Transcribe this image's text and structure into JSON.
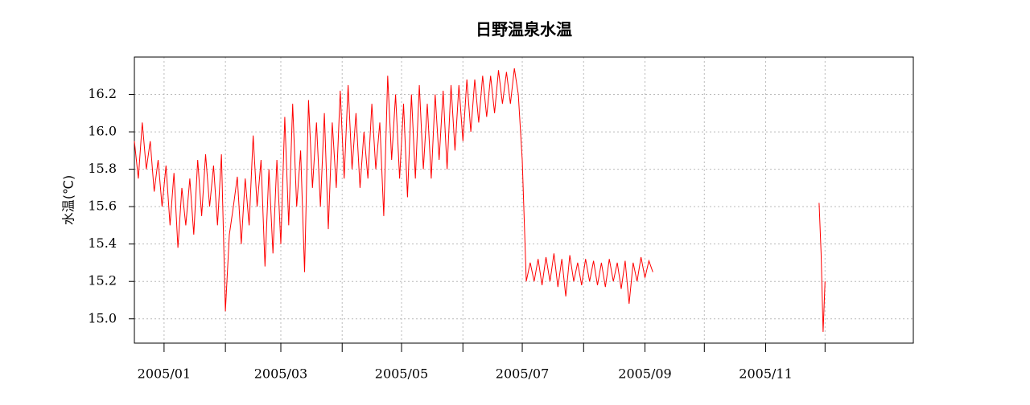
{
  "chart_data": {
    "type": "line",
    "title": "日野温泉水温",
    "y_label": "水温(℃)",
    "x": [
      -15,
      -13,
      -11,
      -9,
      -7,
      -5,
      -3,
      -1,
      1,
      3,
      5,
      7,
      9,
      11,
      13,
      15,
      17,
      19,
      21,
      23,
      25,
      27,
      29,
      31,
      33,
      35,
      37,
      39,
      41,
      43,
      45,
      47,
      49,
      51,
      53,
      55,
      57,
      59,
      61,
      63,
      65,
      67,
      69,
      71,
      73,
      75,
      77,
      79,
      81,
      83,
      85,
      87,
      89,
      91,
      93,
      95,
      97,
      99,
      101,
      103,
      105,
      107,
      109,
      111,
      113,
      115,
      117,
      119,
      121,
      123,
      125,
      127,
      129,
      131,
      133,
      135,
      137,
      139,
      141,
      143,
      145,
      147,
      149,
      151,
      153,
      155,
      157,
      159,
      161,
      163,
      165,
      167,
      169,
      171,
      173,
      175,
      177,
      179,
      181,
      183,
      185,
      187,
      189,
      191,
      193,
      195,
      197,
      199,
      201,
      203,
      205,
      207,
      209,
      211,
      213,
      215,
      217,
      219,
      221,
      223,
      225,
      227,
      229,
      231,
      233,
      235,
      237,
      239,
      241,
      243,
      245,
      247,
      249,
      331,
      332,
      333,
      334
    ],
    "series": [
      {
        "name": "水温",
        "color": "#ff0000",
        "values": [
          15.95,
          15.75,
          16.05,
          15.8,
          15.95,
          15.68,
          15.85,
          15.6,
          15.82,
          15.5,
          15.78,
          15.38,
          15.7,
          15.5,
          15.75,
          15.45,
          15.85,
          15.55,
          15.88,
          15.6,
          15.82,
          15.5,
          15.88,
          15.04,
          15.45,
          15.6,
          15.76,
          15.4,
          15.75,
          15.5,
          15.98,
          15.6,
          15.85,
          15.28,
          15.8,
          15.35,
          15.85,
          15.4,
          16.08,
          15.5,
          16.15,
          15.6,
          15.9,
          15.25,
          16.17,
          15.7,
          16.05,
          15.6,
          16.1,
          15.48,
          16.05,
          15.7,
          16.22,
          15.75,
          16.25,
          15.8,
          16.1,
          15.7,
          16.0,
          15.75,
          16.15,
          15.8,
          16.05,
          15.55,
          16.3,
          15.85,
          16.2,
          15.75,
          16.15,
          15.65,
          16.2,
          15.75,
          16.25,
          15.8,
          16.15,
          15.75,
          16.2,
          15.85,
          16.22,
          15.8,
          16.25,
          15.9,
          16.25,
          15.95,
          16.28,
          16.0,
          16.28,
          16.05,
          16.3,
          16.08,
          16.3,
          16.1,
          16.33,
          16.15,
          16.32,
          16.15,
          16.34,
          16.2,
          15.85,
          15.2,
          15.3,
          15.2,
          15.32,
          15.18,
          15.33,
          15.2,
          15.35,
          15.17,
          15.32,
          15.12,
          15.34,
          15.2,
          15.3,
          15.18,
          15.32,
          15.2,
          15.31,
          15.18,
          15.3,
          15.17,
          15.32,
          15.2,
          15.3,
          15.16,
          15.31,
          15.08,
          15.3,
          15.2,
          15.33,
          15.22,
          15.31,
          15.25,
          null,
          15.62,
          15.35,
          14.93,
          15.2
        ]
      }
    ],
    "xlim": [
      -15,
      378.6
    ],
    "ylim": [
      14.87,
      16.4
    ],
    "xticks": [
      {
        "value": 0,
        "label": "2005/01"
      },
      {
        "value": 59,
        "label": "2005/03"
      },
      {
        "value": 120,
        "label": "2005/05"
      },
      {
        "value": 181,
        "label": "2005/07"
      },
      {
        "value": 243,
        "label": "2005/09"
      },
      {
        "value": 304,
        "label": "2005/11"
      }
    ],
    "xminor_ticks": [
      31,
      90,
      151,
      212,
      273,
      334
    ],
    "yticks": [
      {
        "value": 15,
        "label": "15.0"
      },
      15.2,
      15.4,
      15.6,
      15.8,
      {
        "value": 16,
        "label": "16.0"
      },
      16.2
    ],
    "grid": true
  }
}
